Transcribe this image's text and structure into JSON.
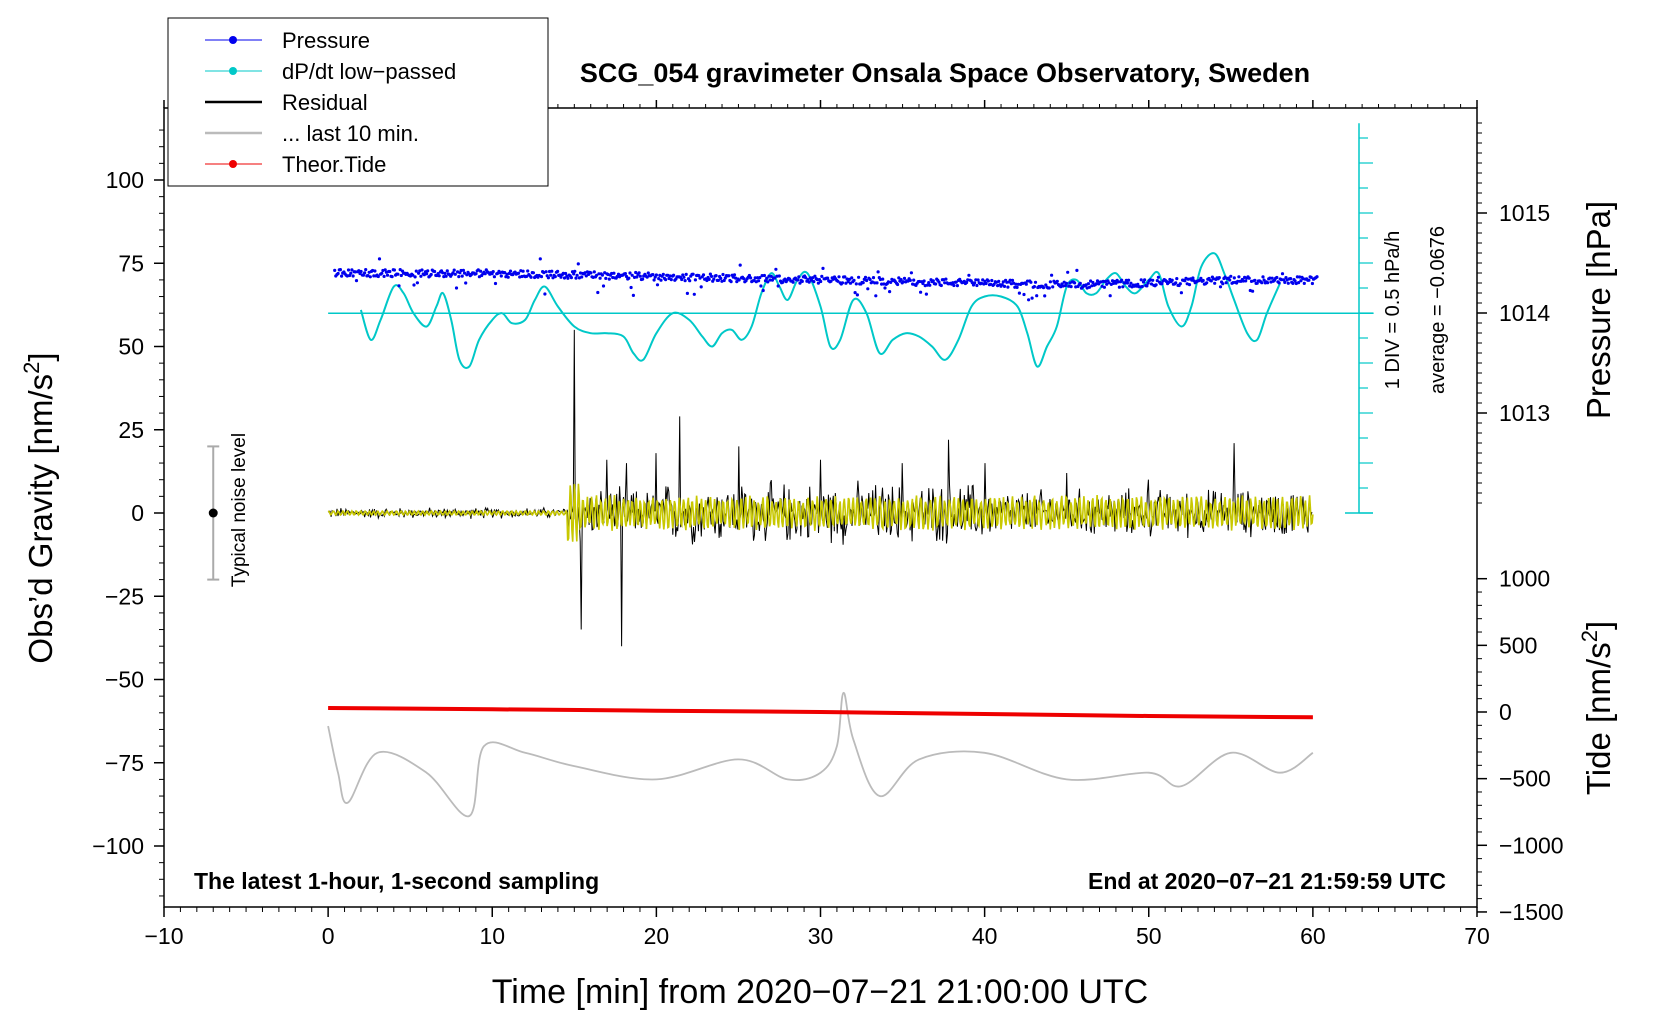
{
  "chart_data": {
    "type": "line",
    "title": "SCG_054 gravimeter Onsala Space Observatory, Sweden",
    "xlabel": "Time [min] from 2020−07−21 21:00:00 UTC",
    "xlim": [
      -10,
      70
    ],
    "xticks": [
      -10,
      0,
      10,
      20,
      30,
      40,
      50,
      60,
      70
    ],
    "xtick_labels": [
      "−10",
      "0",
      "10",
      "20",
      "30",
      "40",
      "50",
      "60",
      "70"
    ],
    "left_axis": {
      "label_main": "Obs’d Gravity [nm/s",
      "label_sup": "2",
      "label_end": "]",
      "ylim": [
        -120,
        120
      ],
      "ticks": [
        100,
        75,
        50,
        25,
        0,
        -25,
        -50,
        -75,
        -100
      ],
      "tick_labels": [
        "100",
        "75",
        "50",
        "25",
        "0",
        "−25",
        "−50",
        "−75",
        "−100"
      ]
    },
    "pressure_axis": {
      "label": "Pressure [hPa]",
      "ticks": [
        1015,
        1014,
        1013
      ],
      "tick_labels": [
        "1015",
        "1014",
        "1013"
      ]
    },
    "tide_axis": {
      "label_main": "Tide [nm/s",
      "label_sup": "2",
      "label_end": "]",
      "ticks": [
        1000,
        500,
        0,
        -500,
        -1000,
        -1500
      ],
      "tick_labels": [
        "1000",
        "500",
        "0",
        "−500",
        "−1000",
        "−1500"
      ]
    },
    "dpdt_scale": {
      "div_label": "1 DIV = 0.5 hPa/h",
      "average_label": "average = −0.0676"
    },
    "noise_level": {
      "label": "Typical noise level",
      "center": 0,
      "half_range": 20,
      "x": -7
    },
    "bottom_left_note": "The latest 1-hour, 1-second sampling",
    "bottom_right_note": "End at 2020−07−21 21:59:59 UTC",
    "legend": [
      {
        "label": "Pressure",
        "color": "#0000ee",
        "marker": "dot"
      },
      {
        "label": "dP/dt low−passed",
        "color": "#00c8c8",
        "marker": "dot"
      },
      {
        "label": "Residual",
        "color": "#000000",
        "marker": "line"
      },
      {
        "label": "... last 10 min.",
        "color": "#bbbbbb",
        "marker": "line"
      },
      {
        "label": "Theor.Tide",
        "color": "#ee0000",
        "marker": "dot"
      }
    ],
    "series": [
      {
        "name": "Pressure",
        "color": "#0000ee",
        "unit": "plot nm/s2",
        "x": [
          0,
          10,
          20,
          30,
          40,
          45,
          50,
          55,
          60
        ],
        "y": [
          72,
          72,
          71,
          70,
          69,
          68.5,
          69,
          70,
          70
        ]
      },
      {
        "name": "dP/dt low-passed",
        "color": "#00c8c8",
        "unit": "plot nm/s2",
        "x": [
          2,
          2.6,
          3.2,
          4,
          4.6,
          5.2,
          6,
          6.6,
          7,
          7.5,
          8,
          8.6,
          9.2,
          10,
          10.6,
          11.2,
          12,
          12.6,
          13.2,
          14,
          15,
          16,
          17,
          18,
          18.6,
          19.2,
          20,
          21,
          22,
          22.8,
          23.4,
          24,
          24.6,
          25.2,
          25.8,
          26.4,
          27,
          27.5,
          28,
          28.6,
          29.2,
          30,
          30.6,
          31.2,
          32,
          32.8,
          33.6,
          34.4,
          35.2,
          36,
          36.8,
          37.6,
          38.4,
          39.2,
          40,
          41,
          42,
          42.6,
          43.2,
          43.8,
          44.4,
          45,
          45.6,
          46.2,
          46.8,
          47.4,
          48,
          48.6,
          49.2,
          50,
          50.6,
          51.2,
          52,
          52.6,
          53.2,
          54,
          54.6,
          55.2,
          56,
          56.6,
          57.2,
          58
        ],
        "y": [
          61,
          52,
          58,
          68,
          66,
          60,
          56,
          62,
          66,
          58,
          46,
          44,
          52,
          58,
          60,
          57,
          58,
          64,
          68,
          62,
          56,
          54,
          54,
          53,
          48,
          46,
          54,
          60,
          58,
          53,
          50,
          54,
          55,
          52,
          56,
          66,
          72,
          68,
          64,
          70,
          72,
          62,
          50,
          52,
          64,
          60,
          48,
          52,
          54,
          53,
          50,
          46,
          52,
          62,
          65,
          65,
          62,
          54,
          44,
          50,
          56,
          68,
          70,
          66,
          66,
          70,
          72,
          68,
          66,
          70,
          72,
          62,
          56,
          62,
          74,
          78,
          72,
          64,
          54,
          52,
          60,
          69
        ]
      },
      {
        "name": "Residual",
        "color": "#000000",
        "unit": "nm/s2",
        "x": [
          0,
          5,
          10,
          14.6,
          15,
          15.4,
          17,
          17.9,
          18.2,
          20,
          21.4,
          25,
          30,
          35,
          37.8,
          40,
          45,
          50,
          55.2,
          60
        ],
        "y": [
          0,
          0,
          0,
          0,
          55,
          -35,
          16,
          -40,
          15,
          18,
          29,
          20,
          16,
          15,
          22,
          15,
          12,
          10,
          21,
          0
        ]
      },
      {
        "name": "... last 10 min.",
        "color": "#bbbbbb",
        "unit": "plot nm/s2",
        "x": [
          0,
          0.6,
          1.2,
          3,
          6,
          8.6,
          9.5,
          12,
          15,
          20,
          25,
          28,
          30,
          31,
          31.4,
          32,
          33.6,
          36,
          40,
          45,
          50,
          52,
          55,
          58,
          60
        ],
        "y": [
          -64,
          -78,
          -87,
          -72,
          -78,
          -91,
          -70,
          -72,
          -76,
          -80,
          -74,
          -80,
          -78,
          -70,
          -54,
          -68,
          -85,
          -74,
          -72,
          -80,
          -78,
          -82,
          -72,
          -78,
          -72
        ]
      },
      {
        "name": "Theor.Tide",
        "color": "#ee0000",
        "unit": "nm/s2 (tide axis)",
        "x": [
          0,
          10,
          20,
          30,
          40,
          50,
          60
        ],
        "y": [
          30,
          20,
          10,
          0,
          -15,
          -30,
          -40
        ]
      }
    ]
  }
}
